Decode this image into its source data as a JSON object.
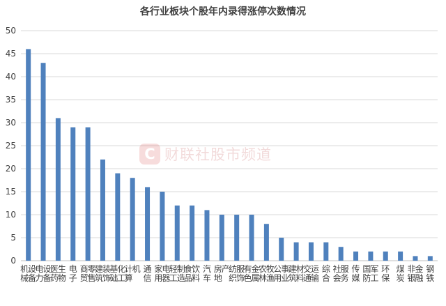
{
  "chart_data": {
    "type": "bar",
    "title": "各行业板块个股年内录得涨停次数情况",
    "xlabel": "",
    "ylabel": "",
    "ylim": [
      0,
      50
    ],
    "yticks": [
      0,
      5,
      10,
      15,
      20,
      25,
      30,
      35,
      40,
      45,
      50
    ],
    "grid": true,
    "categories": [
      "机械设备",
      "电力设备",
      "医药生物",
      "电子",
      "商贸零售",
      "建筑装饰",
      "基础化工",
      "计算机",
      "通信",
      "家用电器",
      "轻工制造",
      "食品饮料",
      "汽车",
      "房地产",
      "纺织服饰",
      "有色金属",
      "农林牧渔",
      "公用事业",
      "建筑材料",
      "交通运输",
      "综合",
      "社会服务",
      "传媒",
      "国防军工",
      "环保",
      "煤炭",
      "非银金融",
      "钢铁"
    ],
    "values": [
      46,
      43,
      31,
      29,
      29,
      22,
      19,
      18,
      16,
      15,
      12,
      12,
      11,
      10,
      10,
      10,
      8,
      5,
      4,
      4,
      4,
      3,
      2,
      2,
      2,
      2,
      1,
      1
    ],
    "bar_color": "#4f81bd"
  },
  "watermark": {
    "logo_letter": "C",
    "text": "财联社股市频道"
  }
}
